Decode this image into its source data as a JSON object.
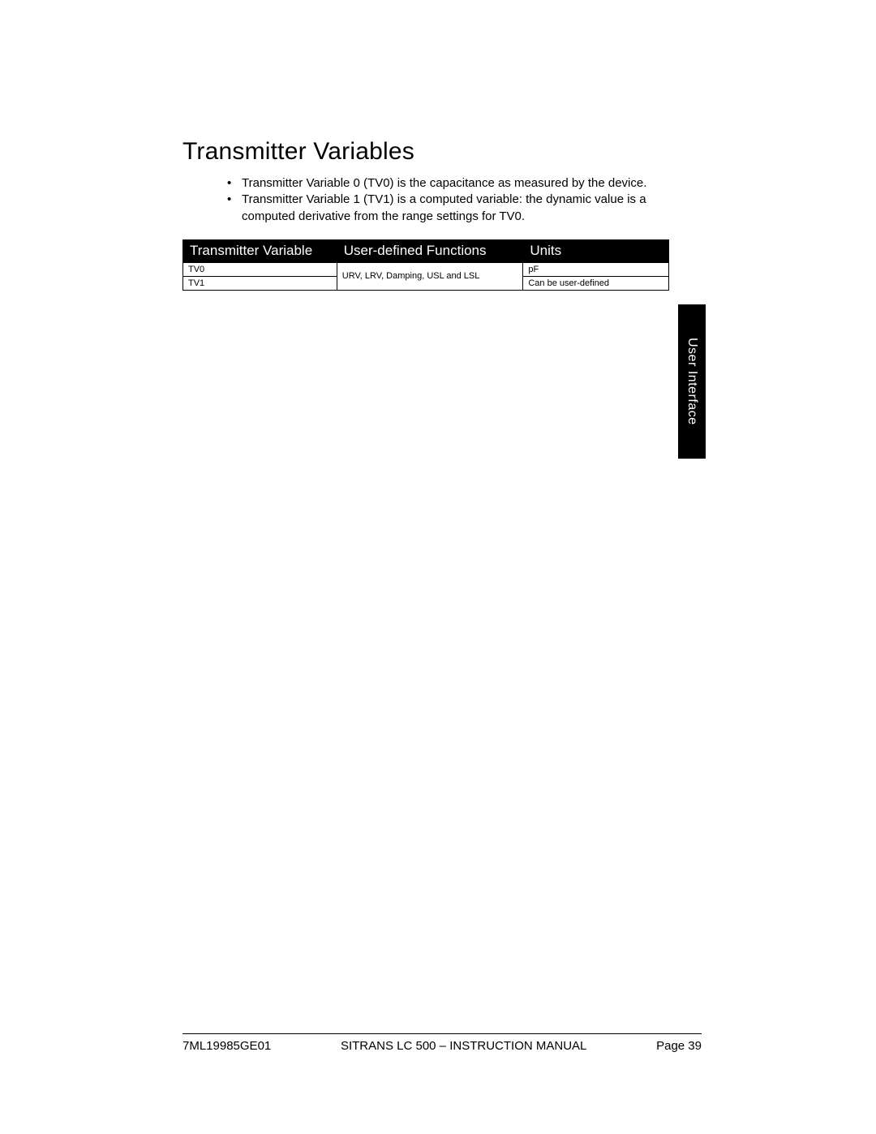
{
  "heading": "Transmitter Variables",
  "bullets": [
    "Transmitter Variable 0 (TV0) is the capacitance as measured by the device.",
    "Transmitter Variable 1 (TV1) is a computed variable: the dynamic value is a computed derivative from the range settings for TV0."
  ],
  "table": {
    "columns": [
      "Transmitter Variable",
      "User-defined Functions",
      "Units"
    ],
    "rows": [
      {
        "variable": "TV0",
        "functions": "URV, LRV, Damping, USL and LSL",
        "units": "pF",
        "func_rowspan": 2
      },
      {
        "variable": "TV1",
        "functions": null,
        "units": "Can be user-defined"
      }
    ],
    "styling": {
      "header_bg": "#000000",
      "header_color": "#ffffff",
      "border_color": "#000000",
      "header_fontsize": 17,
      "cell_fontsize": 11
    }
  },
  "side_tab": "User Interface",
  "footer": {
    "left": "7ML19985GE01",
    "center": "SITRANS LC 500 – INSTRUCTION MANUAL",
    "right": "Page 39"
  },
  "colors": {
    "background": "#ffffff",
    "text": "#000000"
  }
}
